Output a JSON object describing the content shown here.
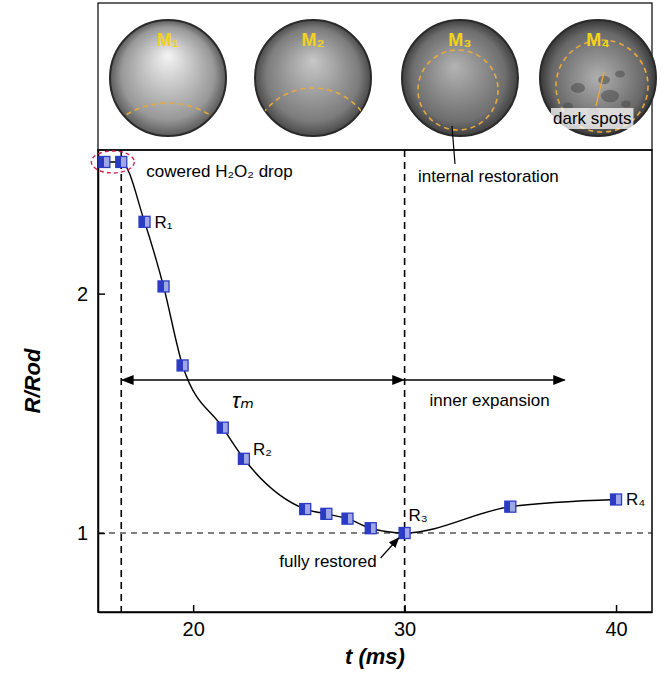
{
  "chart_data": {
    "type": "line",
    "x_label": "t (ms)",
    "y_label": "R/Rod",
    "xlim": [
      15.5,
      41.7
    ],
    "ylim": [
      0.67,
      2.6
    ],
    "xticks": [
      20,
      30,
      40
    ],
    "yticks": [
      1,
      2
    ],
    "x": [
      15.8,
      16.6,
      17.7,
      18.6,
      19.5,
      21.4,
      22.4,
      25.3,
      26.3,
      27.3,
      28.4,
      30,
      35,
      40
    ],
    "values": [
      2.55,
      2.55,
      2.3,
      2.03,
      1.7,
      1.44,
      1.31,
      1.1,
      1.08,
      1.06,
      1.02,
      1,
      1.11,
      1.14
    ],
    "color": "#2b3bc4",
    "marker": "square",
    "line_style": "solid",
    "point_labels": [
      null,
      null,
      "R₁",
      null,
      null,
      null,
      "R₂",
      null,
      null,
      null,
      null,
      "R₃",
      null,
      "R₄"
    ],
    "image_labels": [
      "M₁",
      "M₂",
      "M₃",
      "M₄"
    ],
    "annotations": [
      "cowered H₂O₂ drop",
      "internal restoration",
      "dark spots",
      "fully restored",
      "inner expansion",
      "τₘ"
    ],
    "vlines": [
      16.6,
      30
    ],
    "hlines": [
      1
    ]
  }
}
